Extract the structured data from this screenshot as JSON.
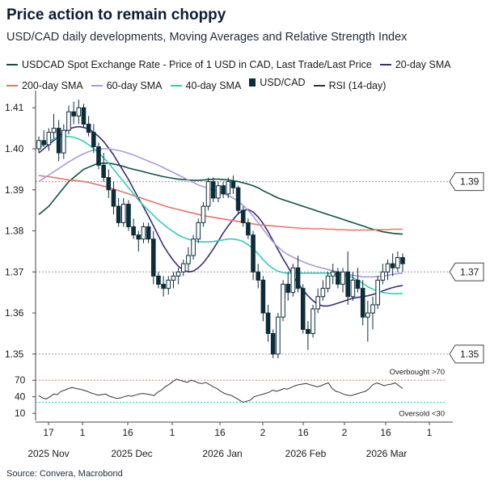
{
  "title": "Price action to remain choppy",
  "subtitle": "USD/CAD daily developments, Moving Averages and Relative Strength Index",
  "legend": [
    {
      "label": "USDCAD Spot Exchange Rate - Price of 1 USD in CAD, Last Trade/Last Price",
      "color": "#0f5045",
      "kind": "line"
    },
    {
      "label": "20-day SMA",
      "color": "#3d2c7a",
      "kind": "line"
    },
    {
      "label": "200-day SMA",
      "color": "#e8736b",
      "kind": "line"
    },
    {
      "label": "60-day SMA",
      "color": "#a99be0",
      "kind": "line"
    },
    {
      "label": "40-day SMA",
      "color": "#34cdb4",
      "kind": "line"
    },
    {
      "label": "USD/CAD",
      "color": "#0d2c3a",
      "kind": "candle"
    },
    {
      "label": "RSI (14-day)",
      "color": "#333333",
      "kind": "line"
    }
  ],
  "source": "Source: Convera, Macrobond",
  "chart_data": [
    {
      "type": "line",
      "panel": "price",
      "ylim": [
        1.348,
        1.413
      ],
      "yticks": [
        "1.41",
        "1.40",
        "1.39",
        "1.38",
        "1.37",
        "1.36",
        "1.35"
      ],
      "xticks": [
        "17",
        "1",
        "16",
        "1",
        "16",
        "2",
        "16",
        "2",
        "16",
        "1"
      ],
      "xgroups": [
        "2025 Nov",
        "2025 Dec",
        "2026 Jan",
        "2026 Feb",
        "2026 Mar"
      ],
      "hlines": [
        {
          "value": 1.392,
          "label": "1.39"
        },
        {
          "value": 1.37,
          "label": "1.37"
        },
        {
          "value": 1.35,
          "label": "1.35"
        }
      ],
      "candles_ohlc": [
        [
          1.4,
          1.403,
          1.399,
          1.402
        ],
        [
          1.402,
          1.4045,
          1.4005,
          1.401
        ],
        [
          1.401,
          1.405,
          1.3995,
          1.404
        ],
        [
          1.404,
          1.4085,
          1.4025,
          1.405
        ],
        [
          1.405,
          1.407,
          1.397,
          1.399
        ],
        [
          1.399,
          1.406,
          1.3975,
          1.4045
        ],
        [
          1.4045,
          1.4105,
          1.4035,
          1.409
        ],
        [
          1.409,
          1.4115,
          1.406,
          1.408
        ],
        [
          1.408,
          1.412,
          1.406,
          1.41
        ],
        [
          1.41,
          1.411,
          1.405,
          1.406
        ],
        [
          1.406,
          1.408,
          1.403,
          1.404
        ],
        [
          1.404,
          1.406,
          1.399,
          1.4005
        ],
        [
          1.4005,
          1.4015,
          1.395,
          1.396
        ],
        [
          1.396,
          1.399,
          1.392,
          1.393
        ],
        [
          1.393,
          1.395,
          1.388,
          1.39
        ],
        [
          1.39,
          1.392,
          1.384,
          1.386
        ],
        [
          1.386,
          1.388,
          1.381,
          1.382
        ],
        [
          1.382,
          1.388,
          1.381,
          1.3865
        ],
        [
          1.3865,
          1.3875,
          1.38,
          1.381
        ],
        [
          1.381,
          1.383,
          1.378,
          1.379
        ],
        [
          1.379,
          1.38,
          1.375,
          1.378
        ],
        [
          1.378,
          1.382,
          1.377,
          1.381
        ],
        [
          1.381,
          1.382,
          1.377,
          1.378
        ],
        [
          1.378,
          1.38,
          1.367,
          1.369
        ],
        [
          1.369,
          1.37,
          1.366,
          1.367
        ],
        [
          1.367,
          1.369,
          1.364,
          1.366
        ],
        [
          1.366,
          1.369,
          1.3645,
          1.368
        ],
        [
          1.368,
          1.37,
          1.366,
          1.369
        ],
        [
          1.369,
          1.371,
          1.367,
          1.37
        ],
        [
          1.37,
          1.373,
          1.369,
          1.372
        ],
        [
          1.372,
          1.376,
          1.37,
          1.374
        ],
        [
          1.374,
          1.379,
          1.373,
          1.378
        ],
        [
          1.378,
          1.383,
          1.377,
          1.382
        ],
        [
          1.382,
          1.387,
          1.381,
          1.386
        ],
        [
          1.386,
          1.393,
          1.385,
          1.392
        ],
        [
          1.392,
          1.393,
          1.387,
          1.388
        ],
        [
          1.388,
          1.392,
          1.387,
          1.391
        ],
        [
          1.391,
          1.392,
          1.388,
          1.389
        ],
        [
          1.389,
          1.393,
          1.388,
          1.392
        ],
        [
          1.392,
          1.3935,
          1.389,
          1.3905
        ],
        [
          1.3905,
          1.391,
          1.384,
          1.385
        ],
        [
          1.385,
          1.386,
          1.381,
          1.382
        ],
        [
          1.382,
          1.383,
          1.378,
          1.379
        ],
        [
          1.379,
          1.38,
          1.368,
          1.37
        ],
        [
          1.37,
          1.372,
          1.366,
          1.368
        ],
        [
          1.368,
          1.369,
          1.358,
          1.36
        ],
        [
          1.36,
          1.362,
          1.353,
          1.355
        ],
        [
          1.355,
          1.356,
          1.349,
          1.35
        ],
        [
          1.35,
          1.36,
          1.349,
          1.359
        ],
        [
          1.359,
          1.368,
          1.358,
          1.367
        ],
        [
          1.367,
          1.37,
          1.363,
          1.365
        ],
        [
          1.365,
          1.372,
          1.364,
          1.371
        ],
        [
          1.371,
          1.374,
          1.365,
          1.366
        ],
        [
          1.366,
          1.367,
          1.355,
          1.356
        ],
        [
          1.356,
          1.358,
          1.351,
          1.355
        ],
        [
          1.355,
          1.362,
          1.354,
          1.361
        ],
        [
          1.361,
          1.366,
          1.36,
          1.364
        ],
        [
          1.364,
          1.368,
          1.363,
          1.366
        ],
        [
          1.366,
          1.37,
          1.365,
          1.369
        ],
        [
          1.369,
          1.372,
          1.367,
          1.37
        ],
        [
          1.37,
          1.371,
          1.366,
          1.367
        ],
        [
          1.367,
          1.371,
          1.365,
          1.37
        ],
        [
          1.37,
          1.375,
          1.362,
          1.364
        ],
        [
          1.364,
          1.37,
          1.363,
          1.368
        ],
        [
          1.368,
          1.371,
          1.365,
          1.366
        ],
        [
          1.366,
          1.368,
          1.357,
          1.359
        ],
        [
          1.359,
          1.363,
          1.353,
          1.36
        ],
        [
          1.36,
          1.364,
          1.356,
          1.362
        ],
        [
          1.362,
          1.369,
          1.361,
          1.368
        ],
        [
          1.368,
          1.372,
          1.367,
          1.37
        ],
        [
          1.37,
          1.373,
          1.368,
          1.372
        ],
        [
          1.372,
          1.3745,
          1.369,
          1.371
        ],
        [
          1.371,
          1.375,
          1.37,
          1.3735
        ],
        [
          1.3735,
          1.3745,
          1.37,
          1.372
        ]
      ],
      "series": [
        {
          "name": "USDCAD Spot Exchange Rate - Price of 1 USD in CAD, Last Trade/Last Price",
          "values": [
            1.384,
            1.385,
            1.386,
            1.3875,
            1.389,
            1.3905,
            1.392,
            1.393,
            1.394,
            1.395,
            1.3955,
            1.396,
            1.3965,
            1.3965,
            1.3965,
            1.3963,
            1.396,
            1.3957,
            1.3953,
            1.395,
            1.3947,
            1.3944,
            1.3941,
            1.3938,
            1.3935,
            1.3932,
            1.393,
            1.3928,
            1.3926,
            1.3925,
            1.3924,
            1.3923,
            1.3923,
            1.3924,
            1.3925,
            1.3926,
            1.3926,
            1.3925,
            1.3924,
            1.3922,
            1.392,
            1.3917,
            1.3914,
            1.391,
            1.3905,
            1.3898,
            1.3892,
            1.3886,
            1.388,
            1.3876,
            1.3872,
            1.3868,
            1.3864,
            1.386,
            1.3856,
            1.3852,
            1.3848,
            1.3844,
            1.384,
            1.3836,
            1.3832,
            1.3828,
            1.3824,
            1.382,
            1.3816,
            1.3812,
            1.3808,
            1.3804,
            1.3801,
            1.3798,
            1.3796,
            1.3794,
            1.3793,
            1.3792
          ]
        },
        {
          "name": "20-day SMA",
          "values": [
            1.399,
            1.4,
            1.401,
            1.402,
            1.403,
            1.404,
            1.4048,
            1.4052,
            1.4054,
            1.4052,
            1.4048,
            1.404,
            1.403,
            1.4018,
            1.4002,
            1.3985,
            1.3965,
            1.3945,
            1.3925,
            1.3902,
            1.388,
            1.3858,
            1.3836,
            1.3812,
            1.3788,
            1.3764,
            1.3745,
            1.3728,
            1.3714,
            1.3704,
            1.37,
            1.3702,
            1.371,
            1.3722,
            1.3738,
            1.3756,
            1.3775,
            1.3795,
            1.3812,
            1.3828,
            1.3842,
            1.385,
            1.3852,
            1.3846,
            1.3834,
            1.3818,
            1.3798,
            1.3776,
            1.3754,
            1.3732,
            1.3712,
            1.369,
            1.3672,
            1.3656,
            1.3642,
            1.363,
            1.3621,
            1.3617,
            1.3617,
            1.362,
            1.3624,
            1.3628,
            1.3632,
            1.3636,
            1.3638,
            1.364,
            1.3642,
            1.3645,
            1.3649,
            1.3654,
            1.3658,
            1.3662,
            1.3665,
            1.3667
          ]
        },
        {
          "name": "200-day SMA",
          "values": [
            1.3935,
            1.3933,
            1.3932,
            1.393,
            1.3928,
            1.3926,
            1.3924,
            1.3923,
            1.3922,
            1.392,
            1.3918,
            1.3915,
            1.3912,
            1.3909,
            1.3906,
            1.3902,
            1.3898,
            1.3894,
            1.389,
            1.3886,
            1.3882,
            1.3878,
            1.3874,
            1.387,
            1.3866,
            1.3862,
            1.3858,
            1.3855,
            1.3852,
            1.3849,
            1.3846,
            1.3843,
            1.384,
            1.3837,
            1.3835,
            1.3833,
            1.3831,
            1.3829,
            1.3827,
            1.3825,
            1.3823,
            1.3821,
            1.3819,
            1.3817,
            1.3815,
            1.3814,
            1.3813,
            1.3812,
            1.3811,
            1.381,
            1.3809,
            1.3808,
            1.3807,
            1.3806,
            1.3806,
            1.3805,
            1.3805,
            1.3805,
            1.3804,
            1.3804,
            1.3803,
            1.3803,
            1.3802,
            1.3802,
            1.3802,
            1.3802,
            1.3802,
            1.3802,
            1.3803,
            1.3803,
            1.3803,
            1.3804,
            1.3804,
            1.3804
          ]
        },
        {
          "name": "60-day SMA",
          "values": [
            1.392,
            1.3928,
            1.3936,
            1.3944,
            1.3952,
            1.396,
            1.3968,
            1.3975,
            1.3982,
            1.3988,
            1.3993,
            1.3997,
            1.3999,
            1.4,
            1.4,
            1.3998,
            1.3996,
            1.3993,
            1.3989,
            1.3985,
            1.398,
            1.3975,
            1.397,
            1.3965,
            1.396,
            1.3954,
            1.3948,
            1.3942,
            1.3936,
            1.393,
            1.3924,
            1.3918,
            1.3912,
            1.3908,
            1.3904,
            1.39,
            1.3896,
            1.3891,
            1.3886,
            1.388,
            1.3872,
            1.3862,
            1.385,
            1.3836,
            1.382,
            1.3804,
            1.3788,
            1.3773,
            1.376,
            1.375,
            1.3742,
            1.3736,
            1.373,
            1.3725,
            1.372,
            1.3716,
            1.3712,
            1.3709,
            1.3706,
            1.3703,
            1.37,
            1.3697,
            1.3694,
            1.3692,
            1.369,
            1.3688,
            1.3688,
            1.3688,
            1.3689,
            1.369,
            1.3692,
            1.3694,
            1.3696,
            1.3697
          ]
        },
        {
          "name": "40-day SMA",
          "values": [
            1.4,
            1.401,
            1.4018,
            1.4024,
            1.4028,
            1.403,
            1.403,
            1.4028,
            1.4024,
            1.4018,
            1.401,
            1.4,
            1.399,
            1.3978,
            1.3965,
            1.395,
            1.3935,
            1.392,
            1.3905,
            1.389,
            1.3875,
            1.3862,
            1.385,
            1.3838,
            1.3826,
            1.3816,
            1.3806,
            1.3798,
            1.379,
            1.3784,
            1.378,
            1.3776,
            1.3774,
            1.3773,
            1.3773,
            1.3774,
            1.3776,
            1.3778,
            1.378,
            1.378,
            1.3778,
            1.3774,
            1.3766,
            1.3756,
            1.3744,
            1.373,
            1.3718,
            1.3708,
            1.3702,
            1.3698,
            1.3697,
            1.3697,
            1.3697,
            1.3697,
            1.3697,
            1.3697,
            1.3697,
            1.3697,
            1.3697,
            1.3696,
            1.3694,
            1.3692,
            1.369,
            1.3686,
            1.368,
            1.3672,
            1.3664,
            1.3658,
            1.3653,
            1.365,
            1.3648,
            1.3647,
            1.3647,
            1.3647
          ]
        }
      ]
    },
    {
      "type": "line",
      "panel": "rsi",
      "ylim": [
        0,
        85
      ],
      "yticks": [
        "70",
        "40",
        "10"
      ],
      "hlines": [
        {
          "value": 70,
          "label": "Overbought >70",
          "color": "#e8736b"
        },
        {
          "value": 30,
          "label": "Oversold <30",
          "color": "#34cdb4"
        }
      ],
      "series": [
        {
          "name": "RSI (14-day)",
          "values": [
            42,
            38,
            36,
            40,
            45,
            44,
            50,
            52,
            55,
            57,
            55,
            54,
            52,
            50,
            47,
            45,
            43,
            44,
            45,
            41,
            39,
            37,
            38,
            40,
            42,
            41,
            43,
            45,
            46,
            45,
            44,
            42,
            48,
            52,
            58,
            62,
            67,
            72,
            70,
            68,
            66,
            70,
            68,
            65,
            64,
            66,
            62,
            58,
            55,
            50,
            46,
            44,
            42,
            38,
            34,
            30,
            32,
            34,
            40,
            42,
            44,
            46,
            48,
            52,
            50,
            52,
            55,
            54,
            57,
            60,
            62,
            63,
            64,
            62,
            60,
            58,
            60,
            63,
            65,
            55,
            50,
            48,
            45,
            43,
            42,
            44,
            46,
            48,
            50,
            55,
            62,
            65,
            63,
            60,
            62,
            63,
            65,
            60,
            55
          ]
        }
      ]
    }
  ]
}
